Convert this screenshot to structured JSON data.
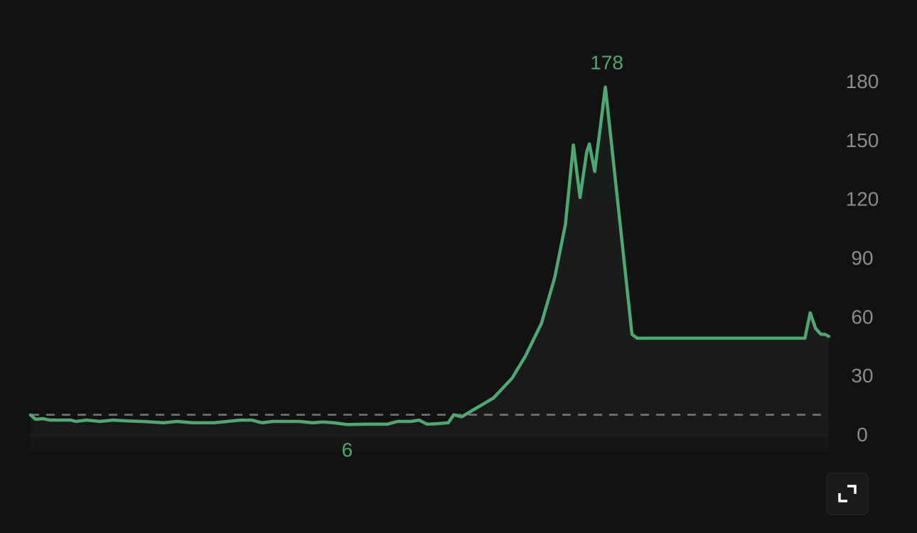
{
  "chart_data": {
    "type": "line",
    "title": "",
    "xlabel": "",
    "ylabel": "",
    "ylim": [
      0,
      180
    ],
    "xlim": [
      0,
      300
    ],
    "yticks": [
      0,
      30,
      60,
      90,
      120,
      150,
      180
    ],
    "grid": false,
    "reference_line": 11,
    "line_color": "#4fa872",
    "annotations": {
      "max_label": "178",
      "min_label": "6"
    },
    "series": [
      {
        "points": [
          [
            0,
            10.9
          ],
          [
            1.9,
            8.7
          ],
          [
            4.5,
            9
          ],
          [
            7.2,
            8.3
          ],
          [
            15,
            8.3
          ],
          [
            17,
            7.6
          ],
          [
            21,
            8.3
          ],
          [
            26,
            7.6
          ],
          [
            31,
            8.3
          ],
          [
            36,
            7.9
          ],
          [
            42,
            7.6
          ],
          [
            50,
            6.9
          ],
          [
            55,
            7.6
          ],
          [
            61,
            6.9
          ],
          [
            69,
            6.9
          ],
          [
            74,
            7.6
          ],
          [
            79,
            8.3
          ],
          [
            83,
            8.3
          ],
          [
            87,
            6.9
          ],
          [
            91,
            7.6
          ],
          [
            95,
            7.6
          ],
          [
            101,
            7.6
          ],
          [
            106,
            6.9
          ],
          [
            110,
            7.3
          ],
          [
            114,
            6.9
          ],
          [
            119,
            6
          ],
          [
            125,
            6.2
          ],
          [
            134,
            6.2
          ],
          [
            138,
            7.6
          ],
          [
            143,
            7.6
          ],
          [
            146,
            8.3
          ],
          [
            149,
            6.2
          ],
          [
            153,
            6.5
          ],
          [
            157,
            6.9
          ],
          [
            159,
            11
          ],
          [
            162,
            10
          ],
          [
            174,
            19.6
          ],
          [
            181,
            29.7
          ],
          [
            186,
            41
          ],
          [
            192,
            57.6
          ],
          [
            197,
            81
          ],
          [
            201,
            108
          ],
          [
            204,
            148.5
          ],
          [
            206.5,
            121.7
          ],
          [
            209,
            145
          ],
          [
            210,
            149
          ],
          [
            212,
            135
          ],
          [
            216,
            178
          ],
          [
            220,
            128
          ],
          [
            224,
            77.5
          ],
          [
            226,
            52
          ],
          [
            228,
            50
          ],
          [
            291,
            50
          ],
          [
            293,
            63
          ],
          [
            295,
            55
          ],
          [
            297,
            52
          ],
          [
            298.5,
            52
          ],
          [
            300,
            51
          ]
        ]
      }
    ]
  },
  "controls": {
    "expand_icon": "expand-icon"
  }
}
